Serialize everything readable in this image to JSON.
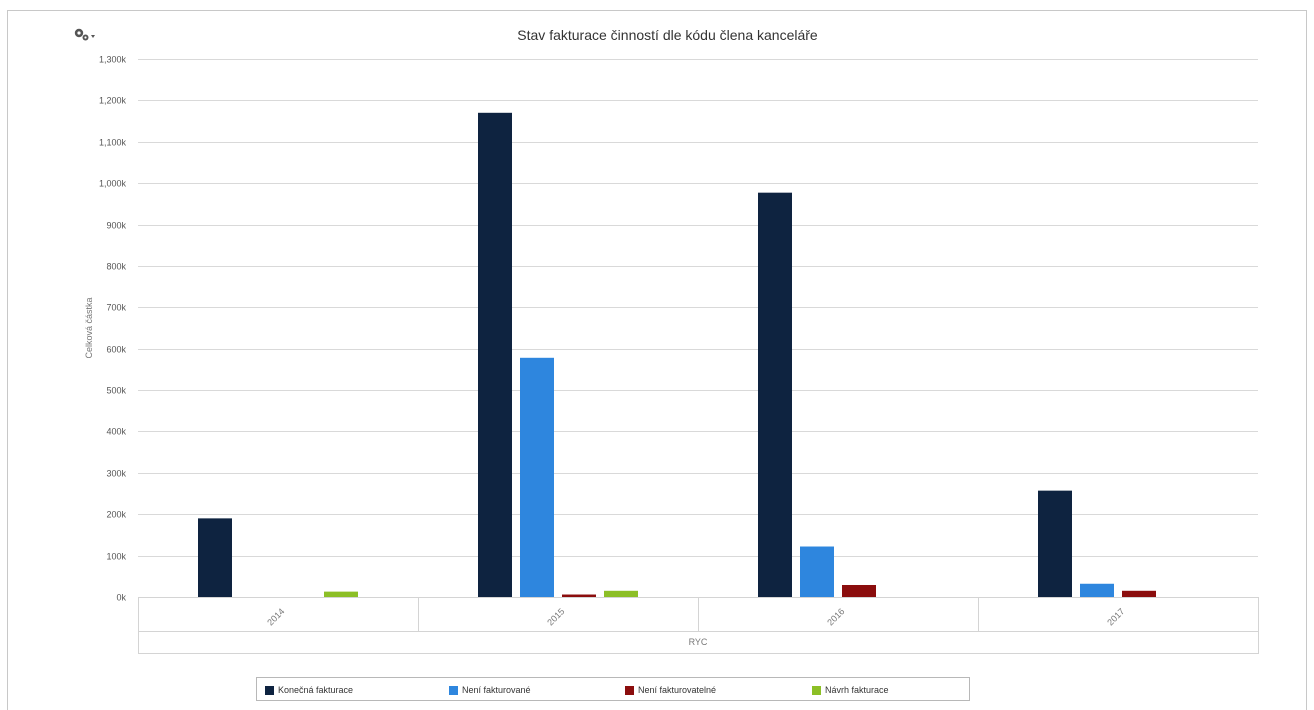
{
  "toolbar": {
    "icon": "gears-dropdown-icon"
  },
  "colors": {
    "grid": "#d9d9d9",
    "frame_border": "#c8c8c8"
  },
  "chart_data": {
    "type": "bar",
    "title": "Stav fakturace činností dle kódu člena kanceláře",
    "ylabel": "Celková částka",
    "xlabel": "RYC",
    "ylim": [
      0,
      1300000
    ],
    "y_ticks": [
      {
        "value": 0,
        "label": "0k"
      },
      {
        "value": 100000,
        "label": "100k"
      },
      {
        "value": 200000,
        "label": "200k"
      },
      {
        "value": 300000,
        "label": "300k"
      },
      {
        "value": 400000,
        "label": "400k"
      },
      {
        "value": 500000,
        "label": "500k"
      },
      {
        "value": 600000,
        "label": "600k"
      },
      {
        "value": 700000,
        "label": "700k"
      },
      {
        "value": 800000,
        "label": "800k"
      },
      {
        "value": 900000,
        "label": "900k"
      },
      {
        "value": 1000000,
        "label": "1,000k"
      },
      {
        "value": 1100000,
        "label": "1,100k"
      },
      {
        "value": 1200000,
        "label": "1,200k"
      },
      {
        "value": 1300000,
        "label": "1,300k"
      }
    ],
    "categories": [
      "2014",
      "2015",
      "2016",
      "2017"
    ],
    "grid": true,
    "legend_position": "bottom",
    "series": [
      {
        "name": "Konečná fakturace",
        "color": "#0e2340",
        "values": [
          190000,
          1170000,
          977000,
          257000
        ]
      },
      {
        "name": "Není fakturované",
        "color": "#2e86de",
        "values": [
          0,
          578000,
          122000,
          32000
        ]
      },
      {
        "name": "Není fakturovatelné",
        "color": "#8b0d0d",
        "values": [
          0,
          6000,
          29000,
          15000
        ]
      },
      {
        "name": "Návrh fakturace",
        "color": "#8cbf26",
        "values": [
          13000,
          15000,
          0,
          0
        ]
      }
    ]
  }
}
